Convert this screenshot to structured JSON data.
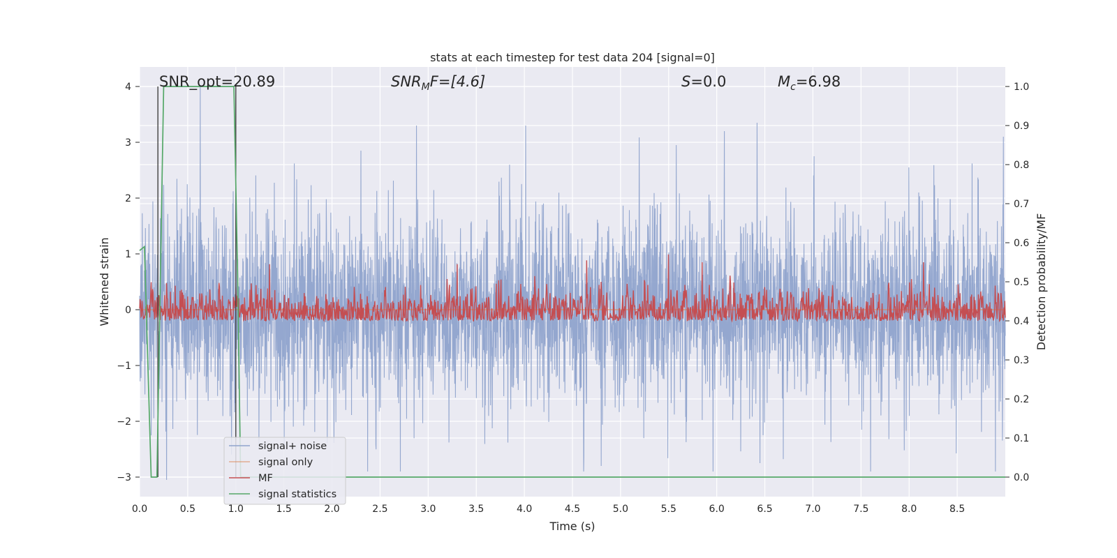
{
  "chart_data": {
    "type": "line",
    "title": "stats at each timestep for test data 204 [signal=0]",
    "xlabel": "Time (s)",
    "ylabel": "Whitened strain",
    "y2label": "Detection probability/MF",
    "xlim": [
      0.0,
      9.0
    ],
    "ylim": [
      -3.35,
      4.35
    ],
    "y2lim": [
      -0.05,
      1.05
    ],
    "x_ticks": [
      0.0,
      0.5,
      1.0,
      1.5,
      2.0,
      2.5,
      3.0,
      3.5,
      4.0,
      4.5,
      5.0,
      5.5,
      6.0,
      6.5,
      7.0,
      7.5,
      8.0,
      8.5
    ],
    "x_tick_labels": [
      "0.0",
      "0.5",
      "1.0",
      "1.5",
      "2.0",
      "2.5",
      "3.0",
      "3.5",
      "4.0",
      "4.5",
      "5.0",
      "5.5",
      "6.0",
      "6.5",
      "7.0",
      "7.5",
      "8.0",
      "8.5"
    ],
    "y_ticks": [
      -3,
      -2,
      -1,
      0,
      1,
      2,
      3,
      4
    ],
    "y_tick_labels": [
      "−3",
      "−2",
      "−1",
      "0",
      "1",
      "2",
      "3",
      "4"
    ],
    "y2_ticks": [
      0.0,
      0.1,
      0.2,
      0.3,
      0.4,
      0.5,
      0.6,
      0.7,
      0.8,
      0.9,
      1.0
    ],
    "y2_tick_labels": [
      "0.0",
      "0.1",
      "0.2",
      "0.3",
      "0.4",
      "0.5",
      "0.6",
      "0.7",
      "0.8",
      "0.9",
      "1.0"
    ],
    "grid": true,
    "legend_position": "bottom-left",
    "annotations": {
      "snr_opt": "SNR_opt=20.89",
      "snr_mf_base": "SNR",
      "snr_mf_sub": "M",
      "snr_mf_rest": "F=[4.6]",
      "s_italic": "S",
      "s_rest": "=0.0",
      "mc_italic": "M",
      "mc_sub": "c",
      "mc_rest": "=6.98"
    },
    "series": [
      {
        "name": "signal+ noise",
        "color": "#8fa3cc",
        "generated": "noise",
        "x_range": [
          0.0,
          9.0
        ],
        "samples": 3600,
        "peaks": [
          [
            0.63,
            4.0
          ],
          [
            0.28,
            -3.05
          ],
          [
            2.3,
            2.85
          ],
          [
            6.42,
            3.35
          ],
          [
            6.08,
            3.2
          ],
          [
            5.58,
            2.95
          ],
          [
            8.98,
            3.1
          ],
          [
            4.8,
            -2.8
          ],
          [
            6.45,
            -2.75
          ]
        ]
      },
      {
        "name": "signal only",
        "color": "#dd8452",
        "constant": 0.0,
        "x_range": [
          0.0,
          9.0
        ]
      },
      {
        "name": "MF",
        "color": "#c44e52",
        "generated": "mf",
        "axis": "right",
        "x_range": [
          0.0,
          9.0
        ],
        "samples": 1800,
        "base": 0.42,
        "peaks": [
          [
            5.5,
            0.57
          ],
          [
            5.85,
            0.55
          ],
          [
            4.65,
            0.555
          ],
          [
            8.15,
            0.55
          ],
          [
            1.35,
            0.545
          ],
          [
            3.3,
            0.545
          ]
        ]
      },
      {
        "name": "signal statistics",
        "color": "#55a868",
        "axis": "right",
        "x": [
          0.0,
          0.05,
          0.12,
          0.18,
          0.25,
          0.98,
          1.02,
          1.05,
          1.5,
          2.0,
          3.0,
          4.0,
          5.0,
          6.0,
          7.0,
          8.0,
          9.0
        ],
        "values": [
          0.58,
          0.59,
          0.0,
          0.0,
          1.0,
          1.0,
          0.5,
          0.0,
          0.0,
          0.0,
          0.0,
          0.0,
          0.0,
          0.0,
          0.0,
          0.0,
          0.0
        ]
      }
    ],
    "vlines": {
      "color": "#404040",
      "x": [
        0.19,
        1.0
      ],
      "y2": [
        0.0,
        1.0
      ]
    }
  }
}
